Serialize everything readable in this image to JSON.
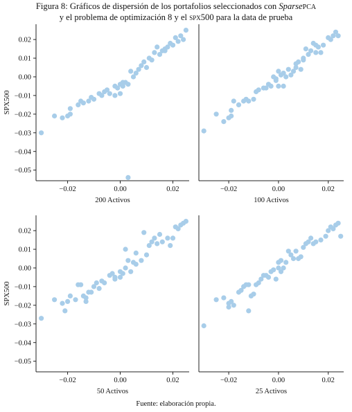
{
  "caption": {
    "prefix": "Figura 8:",
    "text_before": "Gráficos de dispersión de los portafolios seleccionados con",
    "method_italic": "Sparse",
    "method_sc": "PCA",
    "line2_before": "y el problema de optimización 8 y el",
    "index_sc": "spx",
    "line2_after": "500 para la data de prueba"
  },
  "footer": "Fuente: elaboración propia.",
  "colors": {
    "point": "#a8cde9",
    "axis": "#222222"
  },
  "chart_data": [
    {
      "type": "scatter",
      "xlabel": "200 Activos",
      "ylabel": "SPX500",
      "xlim": [
        -0.035,
        0.028
      ],
      "ylim": [
        -0.056,
        0.028
      ],
      "xticks": [
        -0.02,
        0.0,
        0.02
      ],
      "xtick_labels": [
        "−0.02",
        "0.00",
        "0.02"
      ],
      "yticks": [
        0.02,
        0.01,
        0.0,
        -0.01,
        -0.02,
        -0.03,
        -0.04,
        -0.05
      ],
      "ytick_labels": [
        "0.02",
        "0.01",
        "0.00",
        "−0.01",
        "−0.02",
        "−0.03",
        "−0.04",
        "−0.05"
      ],
      "points": [
        [
          -0.03,
          -0.03
        ],
        [
          -0.025,
          -0.021
        ],
        [
          -0.022,
          -0.022
        ],
        [
          -0.02,
          -0.021
        ],
        [
          -0.019,
          -0.02
        ],
        [
          -0.019,
          -0.017
        ],
        [
          -0.016,
          -0.015
        ],
        [
          -0.015,
          -0.013
        ],
        [
          -0.014,
          -0.014
        ],
        [
          -0.012,
          -0.013
        ],
        [
          -0.011,
          -0.011
        ],
        [
          -0.01,
          -0.012
        ],
        [
          -0.008,
          -0.009
        ],
        [
          -0.006,
          -0.008
        ],
        [
          -0.005,
          -0.007
        ],
        [
          -0.004,
          -0.009
        ],
        [
          -0.002,
          -0.005
        ],
        [
          -0.001,
          -0.006
        ],
        [
          0.0,
          -0.004
        ],
        [
          0.0,
          -0.009
        ],
        [
          0.001,
          -0.003
        ],
        [
          0.001,
          -0.005
        ],
        [
          0.002,
          -0.003
        ],
        [
          0.003,
          -0.004
        ],
        [
          0.004,
          0.003
        ],
        [
          0.005,
          0.0
        ],
        [
          0.006,
          0.002
        ],
        [
          0.008,
          0.006
        ],
        [
          0.009,
          0.008
        ],
        [
          0.01,
          0.005
        ],
        [
          0.011,
          0.01
        ],
        [
          0.012,
          0.009
        ],
        [
          0.013,
          0.013
        ],
        [
          0.014,
          0.016
        ],
        [
          0.015,
          0.012
        ],
        [
          0.016,
          0.014
        ],
        [
          0.017,
          0.015
        ],
        [
          0.018,
          0.016
        ],
        [
          0.019,
          0.018
        ],
        [
          0.02,
          0.017
        ],
        [
          0.021,
          0.021
        ],
        [
          0.022,
          0.019
        ],
        [
          0.023,
          0.022
        ],
        [
          0.024,
          0.02
        ],
        [
          0.025,
          0.025
        ],
        [
          0.003,
          -0.054
        ],
        [
          -0.002,
          -0.01
        ],
        [
          0.007,
          0.004
        ],
        [
          -0.007,
          -0.01
        ],
        [
          0.017,
          0.014
        ]
      ]
    },
    {
      "type": "scatter",
      "xlabel": "100 Activos",
      "ylabel": "",
      "xlim": [
        -0.035,
        0.028
      ],
      "ylim": [
        -0.056,
        0.028
      ],
      "xticks": [
        -0.02,
        0.0,
        0.02
      ],
      "xtick_labels": [
        "−0.02",
        "0.00",
        "0.02"
      ],
      "yticks": [],
      "ytick_labels": [],
      "points": [
        [
          -0.03,
          -0.029
        ],
        [
          -0.025,
          -0.02
        ],
        [
          -0.022,
          -0.024
        ],
        [
          -0.02,
          -0.022
        ],
        [
          -0.019,
          -0.021
        ],
        [
          -0.019,
          -0.018
        ],
        [
          -0.018,
          -0.013
        ],
        [
          -0.016,
          -0.015
        ],
        [
          -0.014,
          -0.013
        ],
        [
          -0.013,
          -0.012
        ],
        [
          -0.012,
          -0.013
        ],
        [
          -0.01,
          -0.012
        ],
        [
          -0.009,
          -0.008
        ],
        [
          -0.008,
          -0.007
        ],
        [
          -0.006,
          -0.006
        ],
        [
          -0.005,
          -0.006
        ],
        [
          -0.004,
          -0.004
        ],
        [
          -0.003,
          -0.005
        ],
        [
          -0.002,
          0.0
        ],
        [
          -0.001,
          -0.001
        ],
        [
          0.0,
          0.003
        ],
        [
          0.0,
          -0.005
        ],
        [
          0.001,
          0.001
        ],
        [
          0.002,
          0.002
        ],
        [
          0.003,
          0.0
        ],
        [
          0.004,
          0.004
        ],
        [
          0.005,
          0.001
        ],
        [
          0.006,
          0.003
        ],
        [
          0.007,
          0.005
        ],
        [
          0.008,
          0.008
        ],
        [
          0.009,
          0.004
        ],
        [
          0.01,
          0.01
        ],
        [
          0.011,
          0.015
        ],
        [
          0.012,
          0.012
        ],
        [
          0.013,
          0.014
        ],
        [
          0.014,
          0.018
        ],
        [
          0.015,
          0.017
        ],
        [
          0.016,
          0.016
        ],
        [
          0.017,
          0.013
        ],
        [
          0.018,
          0.017
        ],
        [
          0.02,
          0.021
        ],
        [
          0.021,
          0.02
        ],
        [
          0.022,
          0.022
        ],
        [
          0.023,
          0.024
        ],
        [
          0.024,
          0.022
        ],
        [
          0.015,
          0.013
        ],
        [
          -0.001,
          -0.002
        ],
        [
          0.002,
          -0.005
        ],
        [
          0.007,
          0.007
        ],
        [
          0.01,
          0.009
        ]
      ]
    },
    {
      "type": "scatter",
      "xlabel": "50 Activos",
      "ylabel": "SPX500",
      "xlim": [
        -0.035,
        0.028
      ],
      "ylim": [
        -0.056,
        0.028
      ],
      "xticks": [
        -0.02,
        0.0,
        0.02
      ],
      "xtick_labels": [
        "−0.02",
        "0.00",
        "0.02"
      ],
      "yticks": [
        0.02,
        0.01,
        0.0,
        -0.01,
        -0.02,
        -0.03,
        -0.04,
        -0.05
      ],
      "ytick_labels": [
        "0.02",
        "0.01",
        "0.00",
        "−0.01",
        "−0.02",
        "−0.03",
        "−0.04",
        "−0.05"
      ],
      "points": [
        [
          -0.03,
          -0.027
        ],
        [
          -0.025,
          -0.017
        ],
        [
          -0.022,
          -0.019
        ],
        [
          -0.021,
          -0.023
        ],
        [
          -0.02,
          -0.018
        ],
        [
          -0.019,
          -0.015
        ],
        [
          -0.017,
          -0.017
        ],
        [
          -0.016,
          -0.009
        ],
        [
          -0.015,
          -0.009
        ],
        [
          -0.014,
          -0.015
        ],
        [
          -0.013,
          -0.016
        ],
        [
          -0.013,
          -0.018
        ],
        [
          -0.012,
          -0.013
        ],
        [
          -0.011,
          -0.013
        ],
        [
          -0.01,
          -0.01
        ],
        [
          -0.008,
          -0.011
        ],
        [
          -0.007,
          -0.007
        ],
        [
          -0.006,
          -0.008
        ],
        [
          -0.004,
          -0.004
        ],
        [
          -0.003,
          -0.003
        ],
        [
          -0.002,
          -0.005
        ],
        [
          0.0,
          -0.002
        ],
        [
          0.0,
          -0.005
        ],
        [
          0.001,
          -0.003
        ],
        [
          0.002,
          0.0
        ],
        [
          0.002,
          0.01
        ],
        [
          0.003,
          0.004
        ],
        [
          0.004,
          -0.002
        ],
        [
          0.005,
          0.003
        ],
        [
          0.006,
          0.002
        ],
        [
          0.008,
          0.004
        ],
        [
          0.009,
          0.019
        ],
        [
          0.01,
          0.007
        ],
        [
          0.011,
          0.012
        ],
        [
          0.012,
          0.014
        ],
        [
          0.013,
          0.016
        ],
        [
          0.014,
          0.013
        ],
        [
          0.015,
          0.018
        ],
        [
          0.016,
          0.014
        ],
        [
          0.018,
          0.016
        ],
        [
          0.019,
          0.012
        ],
        [
          0.02,
          0.016
        ],
        [
          0.021,
          0.022
        ],
        [
          0.022,
          0.021
        ],
        [
          0.023,
          0.023
        ],
        [
          0.024,
          0.024
        ],
        [
          0.025,
          0.025
        ],
        [
          -0.002,
          -0.006
        ],
        [
          0.006,
          0.008
        ],
        [
          -0.009,
          -0.008
        ]
      ]
    },
    {
      "type": "scatter",
      "xlabel": "25 Activos",
      "ylabel": "",
      "xlim": [
        -0.035,
        0.028
      ],
      "ylim": [
        -0.056,
        0.028
      ],
      "xticks": [
        -0.02,
        0.0,
        0.02
      ],
      "xtick_labels": [
        "−0.02",
        "0.00",
        "0.02"
      ],
      "yticks": [],
      "ytick_labels": [],
      "points": [
        [
          -0.03,
          -0.031
        ],
        [
          -0.025,
          -0.017
        ],
        [
          -0.022,
          -0.016
        ],
        [
          -0.02,
          -0.019
        ],
        [
          -0.02,
          -0.021
        ],
        [
          -0.019,
          -0.018
        ],
        [
          -0.018,
          -0.02
        ],
        [
          -0.016,
          -0.013
        ],
        [
          -0.015,
          -0.012
        ],
        [
          -0.014,
          -0.01
        ],
        [
          -0.013,
          -0.009
        ],
        [
          -0.012,
          -0.009
        ],
        [
          -0.012,
          -0.023
        ],
        [
          -0.011,
          -0.015
        ],
        [
          -0.01,
          -0.014
        ],
        [
          -0.009,
          -0.009
        ],
        [
          -0.008,
          -0.008
        ],
        [
          -0.007,
          -0.006
        ],
        [
          -0.006,
          -0.004
        ],
        [
          -0.005,
          -0.004
        ],
        [
          -0.004,
          -0.005
        ],
        [
          -0.003,
          -0.002
        ],
        [
          -0.002,
          -0.001
        ],
        [
          -0.001,
          -0.006
        ],
        [
          0.0,
          0.003
        ],
        [
          0.0,
          0.0
        ],
        [
          0.001,
          0.004
        ],
        [
          0.001,
          -0.002
        ],
        [
          0.002,
          0.0
        ],
        [
          0.003,
          0.003
        ],
        [
          0.004,
          0.009
        ],
        [
          0.005,
          0.007
        ],
        [
          0.006,
          0.005
        ],
        [
          0.007,
          0.009
        ],
        [
          0.008,
          0.005
        ],
        [
          0.009,
          0.006
        ],
        [
          0.01,
          0.011
        ],
        [
          0.011,
          0.013
        ],
        [
          0.012,
          0.014
        ],
        [
          0.013,
          0.016
        ],
        [
          0.014,
          0.013
        ],
        [
          0.015,
          0.014
        ],
        [
          0.017,
          0.015
        ],
        [
          0.019,
          0.017
        ],
        [
          0.02,
          0.02
        ],
        [
          0.021,
          0.022
        ],
        [
          0.022,
          0.021
        ],
        [
          0.023,
          0.023
        ],
        [
          0.024,
          0.024
        ],
        [
          0.025,
          0.017
        ]
      ]
    }
  ]
}
